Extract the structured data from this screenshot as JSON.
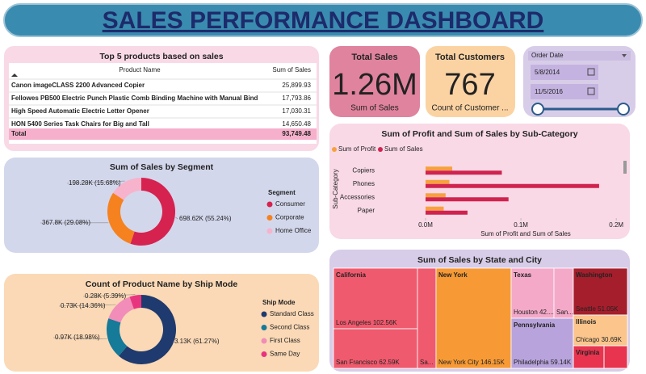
{
  "header": {
    "title": "SALES PERFORMANCE DASHBOARD"
  },
  "table": {
    "title": "Top 5 products based on sales",
    "columns": [
      "Product Name",
      "Sum of Sales"
    ],
    "rows": [
      [
        "Canon imageCLASS 2200 Advanced Copier",
        "25,899.93"
      ],
      [
        "Fellowes PB500 Electric Punch Plastic Comb Binding Machine with Manual Bind",
        "17,793.86"
      ],
      [
        "High Speed Automatic Electric Letter Opener",
        "17,030.31"
      ],
      [
        "HON 5400 Series Task Chairs for Big and Tall",
        "14,650.48"
      ]
    ],
    "total": [
      "Total",
      "93,749.48"
    ]
  },
  "cards": [
    {
      "title": "Total Sales",
      "value": "1.26M",
      "caption": "Sum of Sales"
    },
    {
      "title": "Total Customers",
      "value": "767",
      "caption": "Count of Customer ..."
    }
  ],
  "slicer": {
    "title": "Order Date",
    "start": "5/8/2014",
    "end": "11/5/2016"
  },
  "chart_data": [
    {
      "type": "donut",
      "title": "Sum of Sales by Segment",
      "legend_title": "Segment",
      "categories": [
        "Consumer",
        "Corporate",
        "Home Office"
      ],
      "values": [
        698620,
        367800,
        198280
      ],
      "value_labels": [
        "698.62K (55.24%)",
        "367.8K (29.08%)",
        "198.28K (15.68%)"
      ],
      "colors": [
        "#d6224f",
        "#f5821f",
        "#f7b3cc"
      ]
    },
    {
      "type": "donut",
      "title": "Count of Product Name by Ship Mode",
      "legend_title": "Ship Mode",
      "categories": [
        "Standard Class",
        "Second Class",
        "First Class",
        "Same Day"
      ],
      "values": [
        3130,
        970,
        730,
        280
      ],
      "value_labels": [
        "3.13K (61.27%)",
        "0.97K (18.98%)",
        "0.73K (14.36%)",
        "0.28K (5.39%)"
      ],
      "colors": [
        "#1f3a6e",
        "#167a99",
        "#f28cb8",
        "#e8347e"
      ]
    },
    {
      "type": "bar",
      "title": "Sum of Profit and Sum of Sales by Sub-Category",
      "x_label": "Sum of Profit and Sum of Sales",
      "y_label": "Sub-Category",
      "categories": [
        "Copiers",
        "Phones",
        "Accessories",
        "Paper"
      ],
      "series": [
        {
          "name": "Sum of Profit",
          "color": "#f7a13d",
          "values": [
            28000,
            25000,
            21000,
            19000
          ]
        },
        {
          "name": "Sum of Sales",
          "color": "#d0234f",
          "values": [
            80000,
            182000,
            87000,
            44000
          ]
        }
      ],
      "xlim": [
        0,
        210000
      ],
      "xticks": [
        {
          "value": 0,
          "label": "0.0M"
        },
        {
          "value": 100000,
          "label": "0.1M"
        },
        {
          "value": 200000,
          "label": "0.2M"
        }
      ]
    },
    {
      "type": "treemap",
      "title": "Sum of Sales by State and City",
      "states": [
        {
          "name": "California",
          "color": "#f05a6e",
          "cities": [
            {
              "name": "Los Angeles",
              "value": 102560,
              "value_label": "102.56K"
            },
            {
              "name": "San Francisco",
              "value": 62590,
              "value_label": "62.59K"
            },
            {
              "name": "Sa..."
            }
          ]
        },
        {
          "name": "New York",
          "color": "#f79a35",
          "cities": [
            {
              "name": "New York City",
              "value": 146150,
              "value_label": "146.15K"
            }
          ]
        },
        {
          "name": "Texas",
          "color": "#f4a9c9",
          "cities": [
            {
              "name": "Houston 42...."
            },
            {
              "name": "San..."
            }
          ]
        },
        {
          "name": "Pennsylvania",
          "color": "#b8a3dc",
          "cities": [
            {
              "name": "Philadelphia",
              "value": 59140,
              "value_label": "59.14K"
            }
          ]
        },
        {
          "name": "Washington",
          "color": "#a51e2c",
          "cities": [
            {
              "name": "Seattle",
              "value": 51050,
              "value_label": "51.05K"
            }
          ]
        },
        {
          "name": "Illinois",
          "color": "#fbc58c",
          "cities": [
            {
              "name": "Chicago",
              "value": 30690,
              "value_label": "30.69K"
            }
          ]
        },
        {
          "name": "Virginia",
          "color": "#e8344f",
          "cities": []
        }
      ]
    }
  ]
}
